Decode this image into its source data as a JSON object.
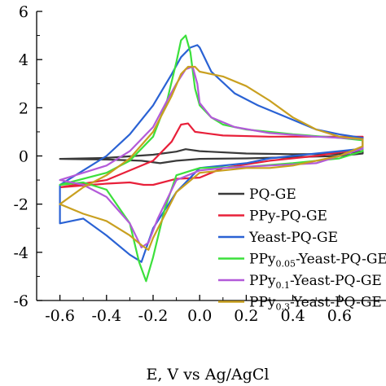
{
  "chart_data": {
    "type": "line",
    "title": "",
    "xlabel": "E, V vs Ag/AgCl",
    "ylabel": "",
    "xlim": [
      -0.7,
      0.8
    ],
    "ylim": [
      -6,
      6
    ],
    "x_tick_labels": [
      "-0.6",
      "-0.4",
      "-0.2",
      "0.0",
      "0.2",
      "0.4",
      "0.6"
    ],
    "y_tick_labels": [
      "-6",
      "-4",
      "-2",
      "0",
      "2",
      "4",
      "6"
    ],
    "legend": {
      "placement": "lower-right",
      "entries": [
        {
          "series": 0,
          "main": "PQ-GE",
          "sub": "",
          "tail": ""
        },
        {
          "series": 1,
          "main": "PPy-PQ-GE",
          "sub": "",
          "tail": ""
        },
        {
          "series": 2,
          "main": "Yeast-PQ-GE",
          "sub": "",
          "tail": ""
        },
        {
          "series": 3,
          "main": "PPy",
          "sub": "0.05",
          "tail": "-Yeast-PQ-GE"
        },
        {
          "series": 4,
          "main": "PPy",
          "sub": "0.1",
          "tail": "-Yeast-PQ-GE"
        },
        {
          "series": 5,
          "main": "PPy",
          "sub": "0.3",
          "tail": "-Yeast-PQ-GE"
        }
      ]
    },
    "series": [
      {
        "name": "PQ-GE",
        "color": "#3a3a3a",
        "x": [
          -0.6,
          -0.4,
          -0.2,
          -0.1,
          -0.06,
          0.0,
          0.2,
          0.4,
          0.6,
          0.7,
          0.7,
          0.6,
          0.4,
          0.2,
          0.0,
          -0.1,
          -0.17,
          -0.25,
          -0.4,
          -0.6
        ],
        "y": [
          -0.12,
          -0.08,
          0.05,
          0.18,
          0.28,
          0.2,
          0.1,
          0.07,
          0.08,
          0.2,
          0.1,
          0.0,
          -0.05,
          -0.1,
          -0.12,
          -0.2,
          -0.3,
          -0.2,
          -0.15,
          -0.12
        ]
      },
      {
        "name": "PPy-PQ-GE",
        "color": "#e8203a",
        "x": [
          -0.6,
          -0.4,
          -0.2,
          -0.12,
          -0.08,
          -0.05,
          -0.02,
          0.1,
          0.3,
          0.5,
          0.7,
          0.7,
          0.5,
          0.3,
          0.1,
          0.0,
          -0.1,
          -0.2,
          -0.24,
          -0.3,
          -0.4,
          -0.6
        ],
        "y": [
          -1.3,
          -1.0,
          -0.2,
          0.6,
          1.3,
          1.35,
          1.0,
          0.85,
          0.8,
          0.8,
          0.8,
          0.3,
          0.0,
          -0.2,
          -0.5,
          -0.9,
          -0.95,
          -1.2,
          -1.2,
          -1.1,
          -1.15,
          -1.3
        ]
      },
      {
        "name": "Yeast-PQ-GE",
        "color": "#2a62d4",
        "x": [
          -0.6,
          -0.5,
          -0.4,
          -0.3,
          -0.2,
          -0.12,
          -0.08,
          -0.04,
          -0.01,
          0.0,
          0.05,
          0.15,
          0.25,
          0.4,
          0.5,
          0.6,
          0.7,
          0.7,
          0.6,
          0.5,
          0.4,
          0.3,
          0.2,
          0.1,
          0.0,
          -0.1,
          -0.2,
          -0.25,
          -0.3,
          -0.4,
          -0.5,
          -0.6
        ],
        "y": [
          -1.2,
          -0.6,
          0.0,
          0.9,
          2.1,
          3.4,
          4.1,
          4.5,
          4.6,
          4.5,
          3.5,
          2.6,
          2.1,
          1.5,
          1.1,
          0.9,
          0.75,
          0.3,
          0.2,
          0.1,
          0.0,
          -0.1,
          -0.3,
          -0.4,
          -0.5,
          -1.5,
          -3.0,
          -4.4,
          -4.1,
          -3.3,
          -2.6,
          -2.8
        ]
      },
      {
        "name": "PPy0.05-Yeast-PQ-GE",
        "color": "#3ce03c",
        "x": [
          -0.6,
          -0.4,
          -0.3,
          -0.2,
          -0.14,
          -0.1,
          -0.08,
          -0.06,
          -0.04,
          -0.02,
          0.0,
          0.05,
          0.1,
          0.2,
          0.4,
          0.6,
          0.7,
          0.7,
          0.6,
          0.4,
          0.2,
          0.0,
          -0.1,
          -0.15,
          -0.2,
          -0.23,
          -0.26,
          -0.3,
          -0.4,
          -0.5,
          -0.6
        ],
        "y": [
          -1.2,
          -0.7,
          -0.2,
          0.8,
          2.3,
          3.9,
          4.8,
          5.0,
          4.3,
          2.8,
          2.1,
          1.6,
          1.3,
          1.1,
          0.9,
          0.75,
          0.65,
          0.2,
          -0.1,
          -0.3,
          -0.45,
          -0.5,
          -0.8,
          -2.2,
          -4.2,
          -5.2,
          -4.4,
          -2.8,
          -1.4,
          -1.1,
          -1.2
        ]
      },
      {
        "name": "PPy0.1-Yeast-PQ-GE",
        "color": "#b35ad9",
        "x": [
          -0.6,
          -0.5,
          -0.4,
          -0.3,
          -0.2,
          -0.14,
          -0.1,
          -0.06,
          -0.03,
          -0.01,
          0.0,
          0.05,
          0.15,
          0.3,
          0.5,
          0.7,
          0.7,
          0.5,
          0.3,
          0.1,
          0.0,
          -0.1,
          -0.18,
          -0.22,
          -0.25,
          -0.3,
          -0.4,
          -0.5,
          -0.6
        ],
        "y": [
          -1.0,
          -0.7,
          -0.4,
          0.2,
          1.2,
          2.3,
          3.0,
          3.6,
          3.7,
          3.0,
          2.2,
          1.6,
          1.2,
          0.95,
          0.8,
          0.7,
          0.3,
          -0.3,
          -0.4,
          -0.5,
          -0.6,
          -1.0,
          -2.6,
          -3.6,
          -3.8,
          -2.8,
          -1.7,
          -1.2,
          -1.0
        ]
      },
      {
        "name": "PPy0.3-Yeast-PQ-GE",
        "color": "#c9a020",
        "x": [
          -0.6,
          -0.5,
          -0.4,
          -0.3,
          -0.2,
          -0.12,
          -0.08,
          -0.05,
          -0.02,
          0.0,
          0.1,
          0.2,
          0.3,
          0.4,
          0.5,
          0.6,
          0.7,
          0.7,
          0.6,
          0.5,
          0.4,
          0.3,
          0.2,
          0.1,
          0.0,
          -0.1,
          -0.2,
          -0.22,
          -0.25,
          -0.3,
          -0.4,
          -0.5,
          -0.6
        ],
        "y": [
          -2.0,
          -1.3,
          -0.8,
          -0.1,
          1.0,
          2.5,
          3.4,
          3.7,
          3.7,
          3.5,
          3.3,
          2.9,
          2.3,
          1.6,
          1.1,
          0.8,
          0.7,
          0.4,
          0.0,
          -0.2,
          -0.4,
          -0.5,
          -0.5,
          -0.6,
          -0.7,
          -1.5,
          -3.4,
          -3.9,
          -3.7,
          -3.3,
          -2.7,
          -2.4,
          -2.0
        ]
      }
    ]
  }
}
